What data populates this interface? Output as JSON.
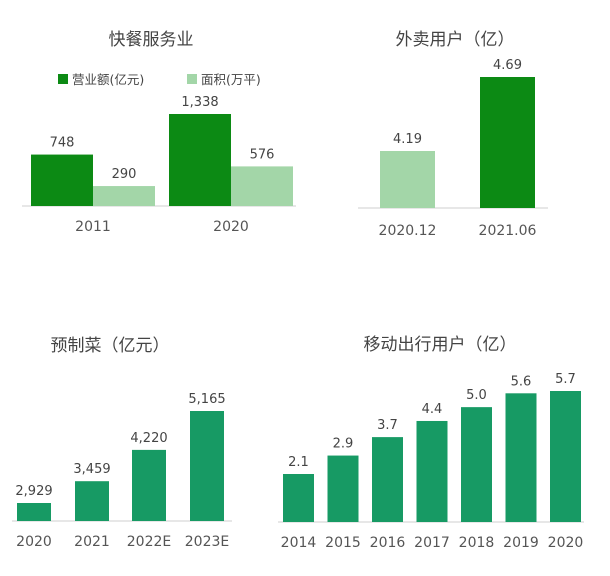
{
  "colors": {
    "dark_green": "#0c8a14",
    "light_green": "#a3d6a8",
    "teal_green": "#179a64",
    "axis": "#cfcfcf"
  },
  "chart_data": [
    {
      "type": "bar",
      "title": "快餐服务业",
      "categories": [
        "2011",
        "2020"
      ],
      "series": [
        {
          "name": "营业额(亿元)",
          "values": [
            748,
            1338
          ],
          "labels": [
            "748",
            "1,338"
          ],
          "color": "#0c8a14"
        },
        {
          "name": "面积(万平)",
          "values": [
            290,
            576
          ],
          "labels": [
            "290",
            "576"
          ],
          "color": "#a3d6a8"
        }
      ],
      "legend": "top"
    },
    {
      "type": "bar",
      "title": "外卖用户（亿）",
      "categories": [
        "2020.12",
        "2021.06"
      ],
      "values": [
        4.19,
        4.69
      ],
      "labels": [
        "4.19",
        "4.69"
      ],
      "bar_colors": [
        "#a3d6a8",
        "#0c8a14"
      ]
    },
    {
      "type": "bar",
      "title": "预制菜（亿元）",
      "categories": [
        "2020",
        "2021",
        "2022E",
        "2023E"
      ],
      "values": [
        2929,
        3459,
        4220,
        5165
      ],
      "labels": [
        "2,929",
        "3,459",
        "4,220",
        "5,165"
      ],
      "bar_color": "#179a64"
    },
    {
      "type": "bar",
      "title": "移动出行用户（亿）",
      "categories": [
        "2014",
        "2015",
        "2016",
        "2017",
        "2018",
        "2019",
        "2020"
      ],
      "values": [
        2.1,
        2.9,
        3.7,
        4.4,
        5.0,
        5.6,
        5.7
      ],
      "labels": [
        "2.1",
        "2.9",
        "3.7",
        "4.4",
        "5.0",
        "5.6",
        "5.7"
      ],
      "bar_color": "#179a64"
    }
  ]
}
